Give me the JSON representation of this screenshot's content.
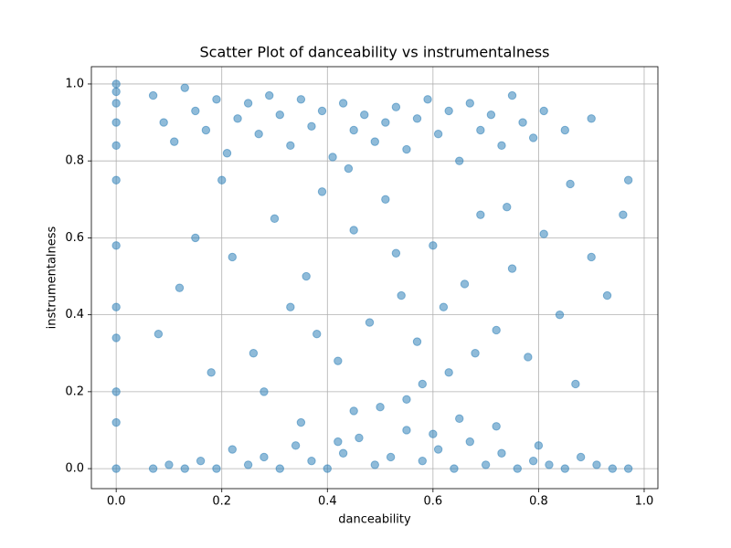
{
  "chart_data": {
    "type": "scatter",
    "title": "Scatter Plot of danceability vs instrumentalness",
    "x_label": "danceability",
    "y_label": "instrumentalness",
    "color": "#1f77b4",
    "alpha": 0.5,
    "grid": true,
    "xlim": [
      -0.047,
      1.026
    ],
    "ylim": [
      -0.052,
      1.045
    ],
    "xticks": [
      {
        "value": 0,
        "label": "0.0"
      },
      0.2,
      0.4,
      0.6,
      0.8,
      {
        "value": 1,
        "label": "1.0"
      }
    ],
    "yticks": [
      {
        "value": 0,
        "label": "0.0"
      },
      0.2,
      0.4,
      0.6,
      0.8,
      {
        "value": 1,
        "label": "1.0"
      }
    ],
    "x": [
      0,
      0,
      0,
      0,
      0,
      0,
      0,
      0,
      0,
      0,
      0,
      0,
      0.07,
      0.09,
      0.11,
      0.13,
      0.15,
      0.17,
      0.19,
      0.21,
      0.23,
      0.25,
      0.27,
      0.29,
      0.31,
      0.33,
      0.35,
      0.37,
      0.39,
      0.41,
      0.43,
      0.45,
      0.47,
      0.49,
      0.51,
      0.53,
      0.55,
      0.57,
      0.59,
      0.61,
      0.63,
      0.65,
      0.67,
      0.69,
      0.71,
      0.73,
      0.75,
      0.77,
      0.79,
      0.81,
      0.85,
      0.9,
      0.07,
      0.1,
      0.13,
      0.16,
      0.19,
      0.22,
      0.25,
      0.28,
      0.31,
      0.34,
      0.37,
      0.4,
      0.43,
      0.46,
      0.49,
      0.52,
      0.55,
      0.58,
      0.61,
      0.64,
      0.67,
      0.7,
      0.73,
      0.76,
      0.79,
      0.82,
      0.85,
      0.88,
      0.91,
      0.94,
      0.97,
      0.35,
      0.45,
      0.55,
      0.6,
      0.65,
      0.72,
      0.5,
      0.42,
      0.8,
      0.08,
      0.12,
      0.15,
      0.18,
      0.22,
      0.26,
      0.3,
      0.33,
      0.36,
      0.39,
      0.42,
      0.45,
      0.48,
      0.51,
      0.54,
      0.57,
      0.6,
      0.63,
      0.66,
      0.69,
      0.72,
      0.75,
      0.78,
      0.81,
      0.84,
      0.87,
      0.9,
      0.93,
      0.96,
      0.2,
      0.28,
      0.38,
      0.44,
      0.53,
      0.62,
      0.68,
      0.74,
      0.86,
      0.97,
      0.58
    ],
    "y": [
      1.0,
      0.98,
      0.95,
      0.9,
      0.84,
      0.75,
      0.58,
      0.42,
      0.34,
      0.2,
      0.12,
      0.0,
      0.97,
      0.9,
      0.85,
      0.99,
      0.93,
      0.88,
      0.96,
      0.82,
      0.91,
      0.95,
      0.87,
      0.97,
      0.92,
      0.84,
      0.96,
      0.89,
      0.93,
      0.81,
      0.95,
      0.88,
      0.92,
      0.85,
      0.9,
      0.94,
      0.83,
      0.91,
      0.96,
      0.87,
      0.93,
      0.8,
      0.95,
      0.88,
      0.92,
      0.84,
      0.97,
      0.9,
      0.86,
      0.93,
      0.88,
      0.91,
      0,
      0.01,
      0,
      0.02,
      0,
      0.05,
      0.01,
      0.03,
      0,
      0.06,
      0.02,
      0,
      0.04,
      0.08,
      0.01,
      0.03,
      0.1,
      0.02,
      0.05,
      0,
      0.07,
      0.01,
      0.04,
      0,
      0.02,
      0.01,
      0,
      0.03,
      0.01,
      0,
      0,
      0.12,
      0.15,
      0.18,
      0.09,
      0.13,
      0.11,
      0.16,
      0.07,
      0.06,
      0.35,
      0.47,
      0.6,
      0.25,
      0.55,
      0.3,
      0.65,
      0.42,
      0.5,
      0.72,
      0.28,
      0.62,
      0.38,
      0.7,
      0.45,
      0.33,
      0.58,
      0.25,
      0.48,
      0.66,
      0.36,
      0.52,
      0.29,
      0.61,
      0.4,
      0.22,
      0.55,
      0.45,
      0.66,
      0.75,
      0.2,
      0.35,
      0.78,
      0.56,
      0.42,
      0.3,
      0.68,
      0.74,
      0.75,
      0.22
    ]
  }
}
